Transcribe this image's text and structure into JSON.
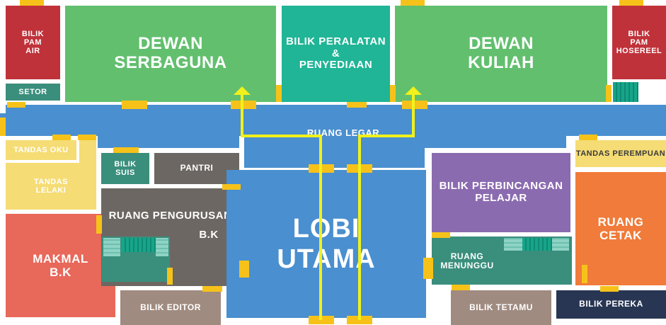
{
  "colors": {
    "corridor": "#4a8fcf",
    "red": "#c0323a",
    "green": "#62bf6e",
    "teal": "#1fb596",
    "dark_teal": "#3a8e7c",
    "yellow_pale": "#f5dc74",
    "salmon": "#e8685a",
    "gray": "#6c6762",
    "taupe": "#a08b80",
    "purple": "#8b6bb0",
    "orange": "#f07b3a",
    "navy": "#283654",
    "door": "#f6c21a",
    "path": "#f1f11b"
  },
  "rooms": {
    "bilik_pam_air": "BILIK\nPAM\nAIR",
    "setor": "SETOR",
    "dewan_serbaguna": "DEWAN\nSERBAGUNA",
    "bilik_peralatan": "BILIK PERALATAN\n&\nPENYEDIAAN",
    "dewan_kuliah": "DEWAN\nKULIAH",
    "bilik_pam_hosereel": "BILIK\nPAM\nHOSEREEL",
    "ruang_legar": "RUANG LEGAR",
    "tandas_oku": "TANDAS OKU",
    "tandas_lelaki": "TANDAS\nLELAKI",
    "bilik_suis": "BILIK\nSUIS",
    "pantri": "PANTRI",
    "ruang_pengurusan": "RUANG PENGURUSAN",
    "ruang_pengurusan_bk": "B.K",
    "makmal_bk": "MAKMAL\nB.K",
    "bilik_editor": "BILIK EDITOR",
    "lobi_utama": "LOBI\nUTAMA",
    "tandas_perempuan": "TANDAS PEREMPUAN",
    "bilik_perbincangan": "BILIK PERBINCANGAN\nPELAJAR",
    "ruang_cetak": "RUANG\nCETAK",
    "ruang_menunggu": "RUANG\nMENUNGGU",
    "bilik_tetamu": "BILIK TETAMU",
    "bilik_pereka": "BILIK PEREKA"
  }
}
